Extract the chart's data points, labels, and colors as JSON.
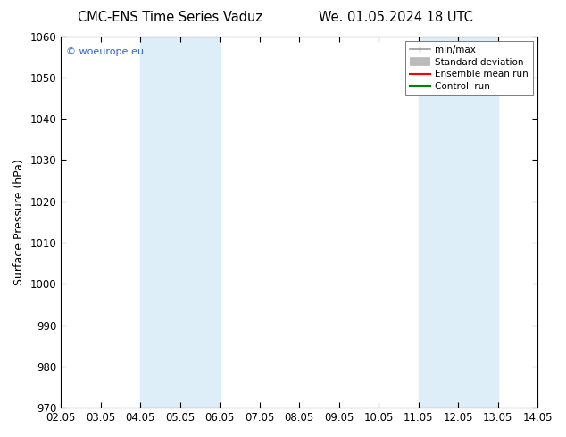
{
  "title_left": "CMC-ENS Time Series Vaduz",
  "title_right": "We. 01.05.2024 18 UTC",
  "ylabel": "Surface Pressure (hPa)",
  "ylim": [
    970,
    1060
  ],
  "yticks": [
    970,
    980,
    990,
    1000,
    1010,
    1020,
    1030,
    1040,
    1050,
    1060
  ],
  "xtick_labels": [
    "02.05",
    "03.05",
    "04.05",
    "05.05",
    "06.05",
    "07.05",
    "08.05",
    "09.05",
    "10.05",
    "11.05",
    "12.05",
    "13.05",
    "14.05"
  ],
  "xtick_positions": [
    0,
    1,
    2,
    3,
    4,
    5,
    6,
    7,
    8,
    9,
    10,
    11,
    12
  ],
  "shaded_bands": [
    {
      "xmin": 2,
      "xmax": 4,
      "color": "#ddeef8"
    },
    {
      "xmin": 9,
      "xmax": 11,
      "color": "#ddeef8"
    }
  ],
  "watermark_text": "© woeurope.eu",
  "watermark_color": "#3366cc",
  "legend_entries": [
    {
      "label": "min/max",
      "color": "#999999",
      "lw": 1.2,
      "style": "minmax"
    },
    {
      "label": "Standard deviation",
      "color": "#bbbbbb",
      "lw": 7,
      "style": "band"
    },
    {
      "label": "Ensemble mean run",
      "color": "#ff0000",
      "lw": 1.5,
      "style": "line"
    },
    {
      "label": "Controll run",
      "color": "#008000",
      "lw": 1.5,
      "style": "line"
    }
  ],
  "bg_color": "#ffffff",
  "title_fontsize": 10.5,
  "ylabel_fontsize": 9,
  "tick_fontsize": 8.5,
  "legend_fontsize": 7.5,
  "watermark_fontsize": 8
}
